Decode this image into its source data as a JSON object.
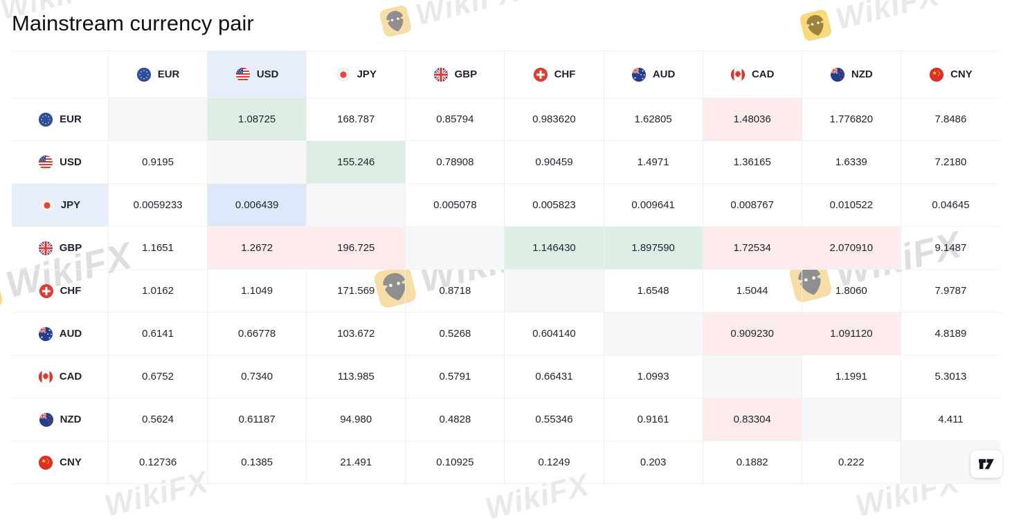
{
  "page": {
    "title": "Mainstream currency pair"
  },
  "watermark": {
    "text": "WikiFX",
    "icon": "wikifx-logo-icon"
  },
  "attribution": {
    "icon": "tradingview-logo-icon"
  },
  "currencies": [
    {
      "code": "EUR",
      "icon": "eur-flag-icon"
    },
    {
      "code": "USD",
      "icon": "usd-flag-icon"
    },
    {
      "code": "JPY",
      "icon": "jpy-flag-icon"
    },
    {
      "code": "GBP",
      "icon": "gbp-flag-icon"
    },
    {
      "code": "CHF",
      "icon": "chf-flag-icon"
    },
    {
      "code": "AUD",
      "icon": "aud-flag-icon"
    },
    {
      "code": "CAD",
      "icon": "cad-flag-icon"
    },
    {
      "code": "NZD",
      "icon": "nzd-flag-icon"
    },
    {
      "code": "CNY",
      "icon": "cny-flag-icon"
    }
  ],
  "chart_data": {
    "type": "table",
    "title": "Mainstream currency pair",
    "columns": [
      "EUR",
      "USD",
      "JPY",
      "GBP",
      "CHF",
      "AUD",
      "CAD",
      "NZD",
      "CNY"
    ],
    "rows": [
      "EUR",
      "USD",
      "JPY",
      "GBP",
      "CHF",
      "AUD",
      "CAD",
      "NZD",
      "CNY"
    ],
    "matrix": [
      [
        "",
        "1.08725",
        "168.787",
        "0.85794",
        "0.983620",
        "1.62805",
        "1.48036",
        "1.776820",
        "7.8486"
      ],
      [
        "0.9195",
        "",
        "155.246",
        "0.78908",
        "0.90459",
        "1.4971",
        "1.36165",
        "1.6339",
        "7.2180"
      ],
      [
        "0.0059233",
        "0.006439",
        "",
        "0.005078",
        "0.005823",
        "0.009641",
        "0.008767",
        "0.010522",
        "0.04645"
      ],
      [
        "1.1651",
        "1.2672",
        "196.725",
        "",
        "1.146430",
        "1.897590",
        "1.72534",
        "2.070910",
        "9.1487"
      ],
      [
        "1.0162",
        "1.1049",
        "171.569",
        "0.8718",
        "",
        "1.6548",
        "1.5044",
        "1.8060",
        "7.9787"
      ],
      [
        "0.6141",
        "0.66778",
        "103.672",
        "0.5268",
        "0.604140",
        "",
        "0.909230",
        "1.091120",
        "4.8189"
      ],
      [
        "0.6752",
        "0.7340",
        "113.985",
        "0.5791",
        "0.66431",
        "1.0993",
        "",
        "1.1991",
        "5.3013"
      ],
      [
        "0.5624",
        "0.61187",
        "94.980",
        "0.4828",
        "0.55346",
        "0.9161",
        "0.83304",
        "",
        "4.411"
      ],
      [
        "0.12736",
        "0.1385",
        "21.491",
        "0.10925",
        "0.1249",
        "0.203",
        "0.1882",
        "0.222",
        ""
      ]
    ],
    "cell_highlights": [
      {
        "row": "EUR",
        "col": "USD",
        "state": "up"
      },
      {
        "row": "EUR",
        "col": "CAD",
        "state": "down"
      },
      {
        "row": "USD",
        "col": "JPY",
        "state": "up"
      },
      {
        "row": "JPY",
        "col": "USD",
        "state": "selected"
      },
      {
        "row": "GBP",
        "col": "USD",
        "state": "down"
      },
      {
        "row": "GBP",
        "col": "JPY",
        "state": "down"
      },
      {
        "row": "GBP",
        "col": "CHF",
        "state": "up"
      },
      {
        "row": "GBP",
        "col": "AUD",
        "state": "up"
      },
      {
        "row": "GBP",
        "col": "CAD",
        "state": "down"
      },
      {
        "row": "GBP",
        "col": "NZD",
        "state": "down"
      },
      {
        "row": "AUD",
        "col": "CAD",
        "state": "down"
      },
      {
        "row": "AUD",
        "col": "NZD",
        "state": "down"
      },
      {
        "row": "NZD",
        "col": "CAD",
        "state": "down"
      }
    ],
    "header_highlights": {
      "column": "USD",
      "row": "JPY"
    },
    "colors": {
      "up_bg": "#ddefe4",
      "down_bg": "#fdeceb",
      "selected_bg": "#dde8fb",
      "header_highlight_bg": "#e7edfb",
      "diagonal_bg": "#f6f7f9",
      "grid_line": "#efefef",
      "text": "#1e222d"
    }
  }
}
